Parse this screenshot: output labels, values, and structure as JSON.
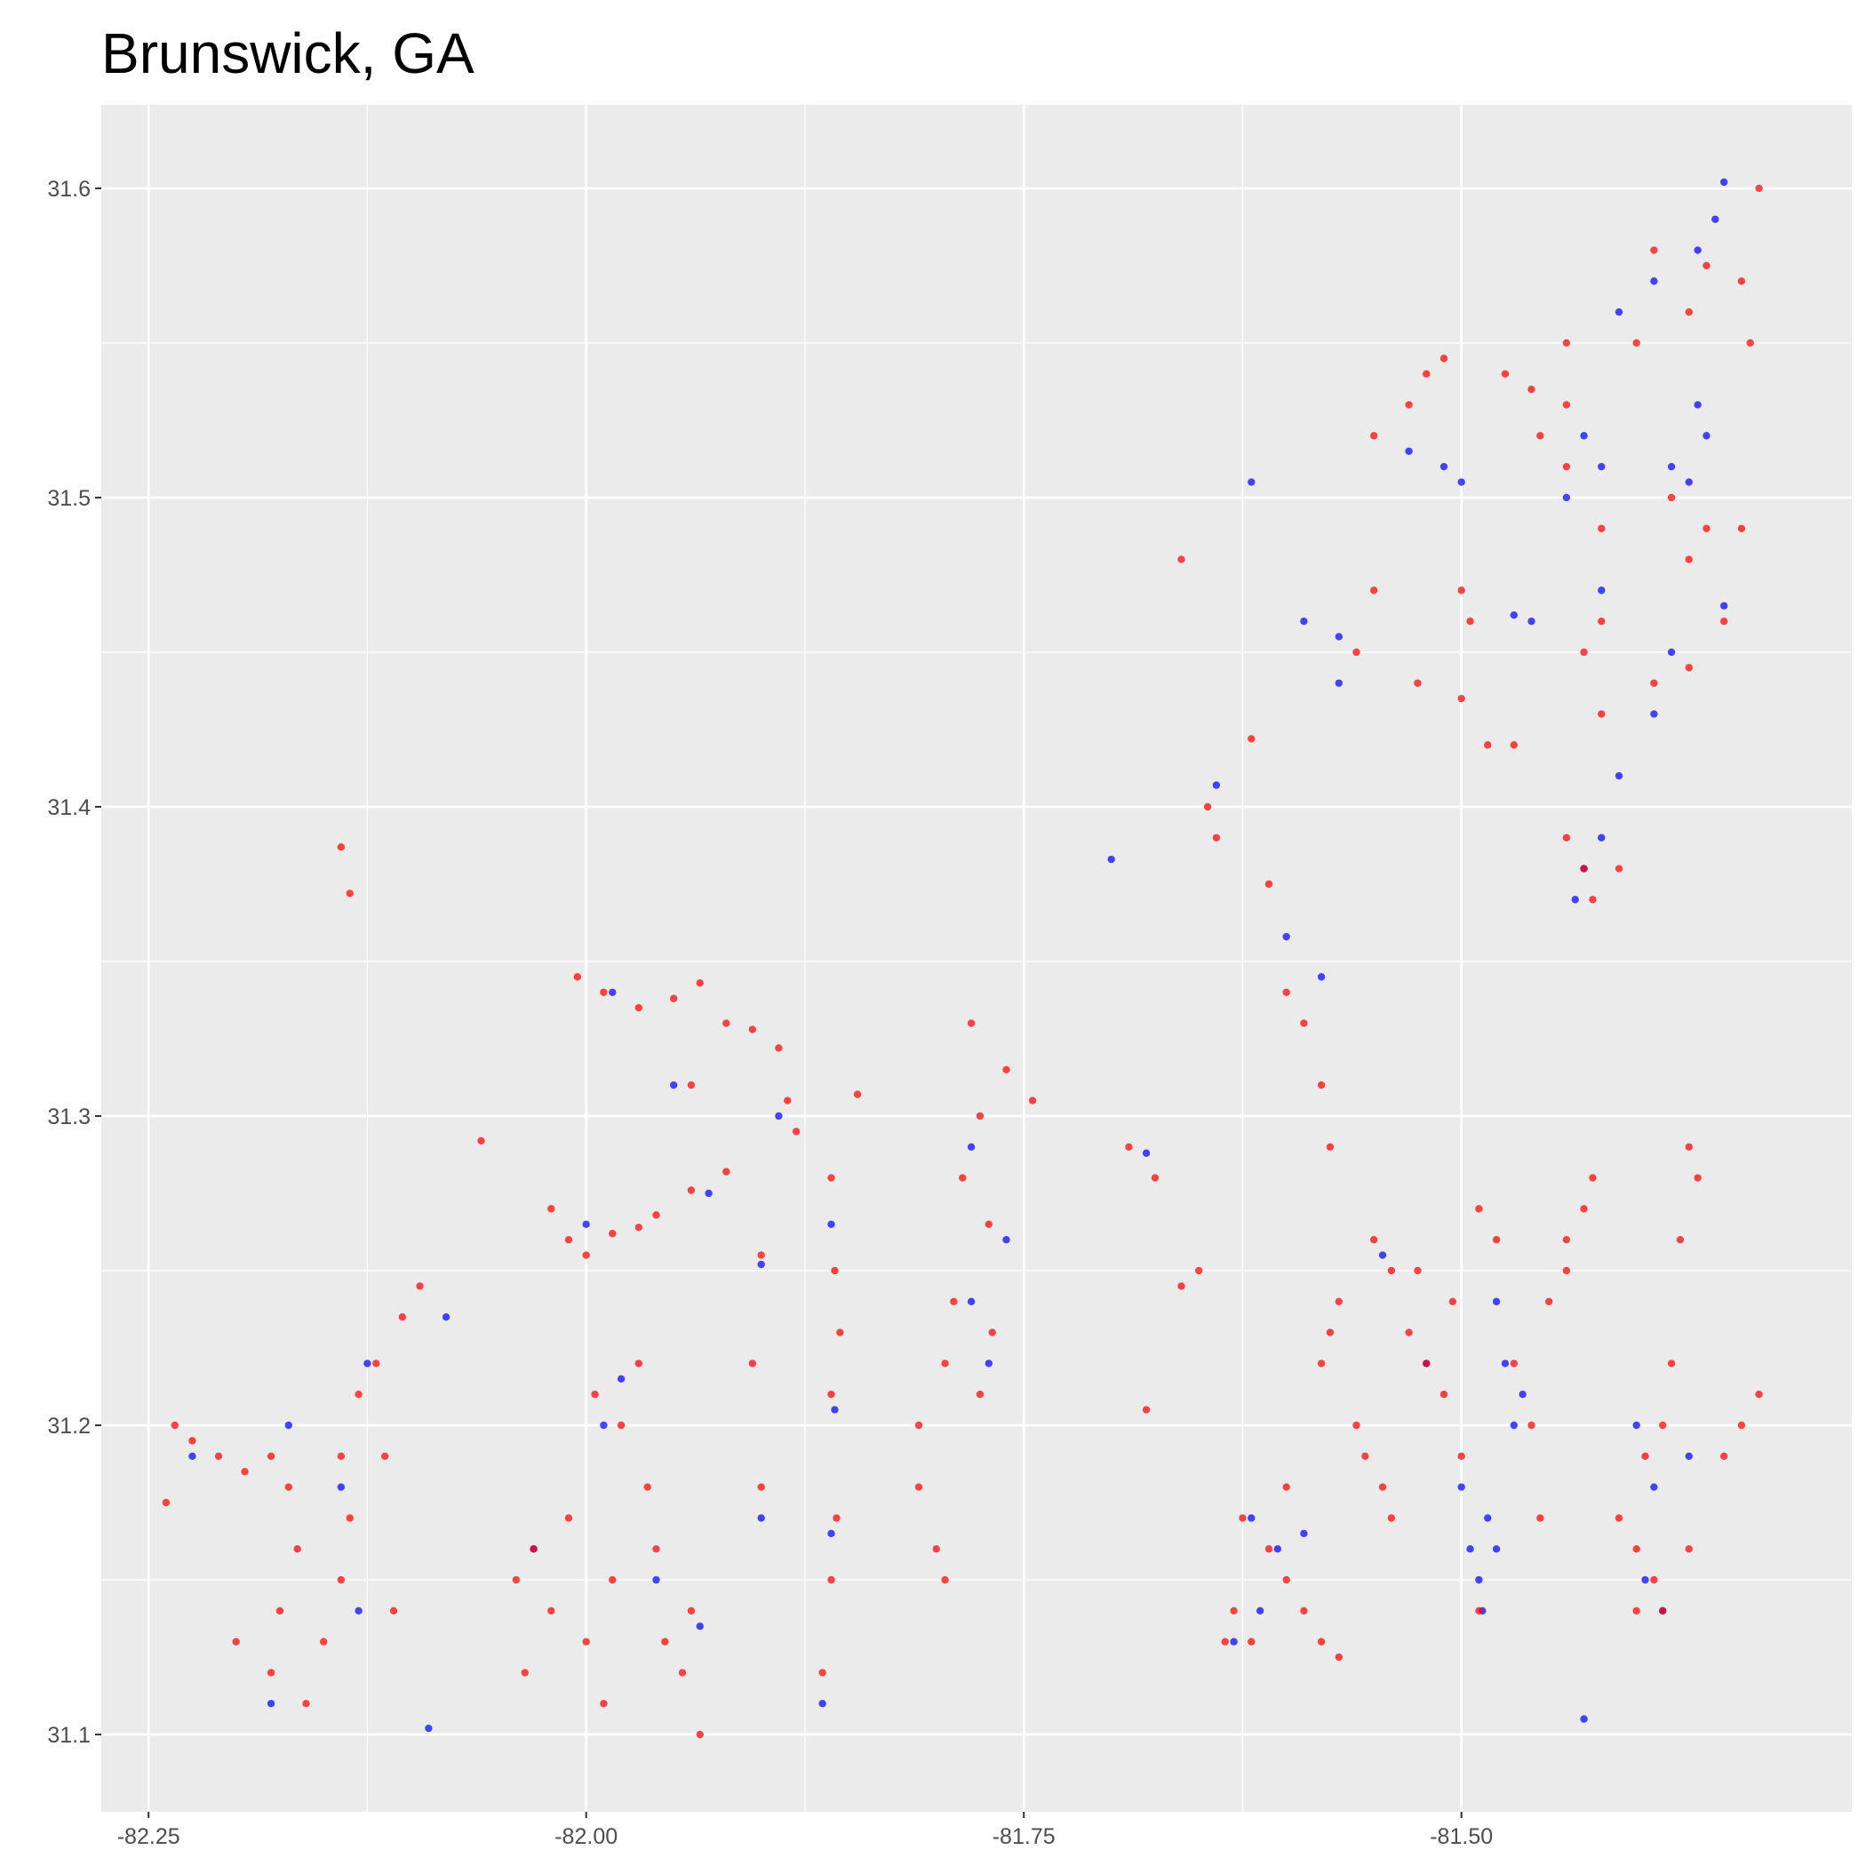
{
  "chart_data": {
    "type": "scatter",
    "title": "Brunswick, GA",
    "xlim": [
      -82.277,
      -81.277
    ],
    "ylim": [
      31.075,
      31.627
    ],
    "xticks": [
      -82.25,
      {
        "value": -82,
        "label": "-82.00"
      },
      -81.75,
      {
        "value": -81.5,
        "label": "-81.50"
      }
    ],
    "yticks": [
      31.1,
      31.2,
      31.3,
      31.4,
      31.5,
      31.6
    ],
    "grid": true,
    "series": [
      {
        "color": "#0000ff",
        "x": [
          -82.225,
          -82.17,
          -82.14,
          -82.125,
          -82.13,
          -82.18,
          -82.09,
          -82.08,
          -82.03,
          -82.0,
          -81.99,
          -81.98,
          -81.96,
          -81.935,
          -81.95,
          -81.93,
          -81.985,
          -81.9,
          -81.89,
          -81.86,
          -81.858,
          -81.86,
          -81.865,
          -81.9,
          -81.78,
          -81.77,
          -81.78,
          -81.76,
          -81.7,
          -81.68,
          -81.64,
          -81.6,
          -81.58,
          -81.62,
          -81.57,
          -81.57,
          -81.62,
          -81.605,
          -81.615,
          -81.63,
          -81.59,
          -81.545,
          -81.52,
          -81.5,
          -81.495,
          -81.49,
          -81.488,
          -81.485,
          -81.47,
          -81.475,
          -81.465,
          -81.48,
          -81.4,
          -81.39,
          -81.395,
          -81.385,
          -81.37,
          -81.43,
          -81.435,
          -81.42,
          -81.41,
          -81.39,
          -81.38,
          -81.46,
          -81.47,
          -81.42,
          -81.43,
          -81.42,
          -81.44,
          -81.38,
          -81.37,
          -81.36,
          -81.365,
          -81.35,
          -81.41,
          -81.39,
          -81.365,
          -81.355,
          -81.35,
          -81.51,
          -81.5,
          -81.53,
          -81.59,
          -81.48,
          -81.43
        ],
        "y": [
          31.19,
          31.2,
          31.18,
          31.22,
          31.14,
          31.11,
          31.102,
          31.235,
          31.16,
          31.265,
          31.2,
          31.215,
          31.15,
          31.135,
          31.31,
          31.275,
          31.34,
          31.252,
          31.3,
          31.265,
          31.205,
          31.165,
          31.11,
          31.17,
          31.29,
          31.22,
          31.24,
          31.26,
          31.383,
          31.288,
          31.407,
          31.358,
          31.345,
          31.505,
          31.44,
          31.455,
          31.17,
          31.16,
          31.14,
          31.13,
          31.165,
          31.255,
          31.22,
          31.18,
          31.16,
          31.15,
          31.14,
          31.17,
          31.2,
          31.22,
          31.21,
          31.24,
          31.2,
          31.18,
          31.15,
          31.14,
          31.19,
          31.38,
          31.37,
          31.39,
          31.41,
          31.43,
          31.45,
          31.46,
          31.462,
          31.47,
          31.52,
          31.51,
          31.5,
          31.51,
          31.505,
          31.52,
          31.53,
          31.465,
          31.56,
          31.57,
          31.58,
          31.59,
          31.602,
          31.51,
          31.505,
          31.515,
          31.46,
          31.16,
          31.105
        ]
      },
      {
        "color": "#ff0000",
        "x": [
          -82.235,
          -82.225,
          -82.21,
          -82.195,
          -82.18,
          -82.17,
          -82.165,
          -82.175,
          -82.18,
          -82.16,
          -82.15,
          -82.14,
          -82.135,
          -82.14,
          -82.13,
          -82.12,
          -82.115,
          -82.105,
          -82.095,
          -82.11,
          -82.2,
          -82.24,
          -82.14,
          -82.135,
          -82.06,
          -82.04,
          -82.035,
          -82.03,
          -82.02,
          -82.01,
          -82.0,
          -81.99,
          -81.985,
          -81.98,
          -81.995,
          -81.97,
          -81.965,
          -81.96,
          -81.955,
          -81.945,
          -81.94,
          -81.935,
          -82.01,
          -82.0,
          -81.985,
          -82.02,
          -81.97,
          -81.96,
          -81.94,
          -81.92,
          -81.99,
          -81.97,
          -81.95,
          -81.935,
          -81.92,
          -81.905,
          -81.89,
          -81.885,
          -81.88,
          -82.005,
          -81.94,
          -81.86,
          -81.858,
          -81.855,
          -81.86,
          -81.857,
          -81.86,
          -81.865,
          -81.9,
          -81.905,
          -81.9,
          -81.845,
          -81.78,
          -81.775,
          -81.785,
          -81.77,
          -81.768,
          -81.775,
          -81.79,
          -81.795,
          -81.81,
          -81.81,
          -81.8,
          -81.795,
          -81.745,
          -81.76,
          -81.69,
          -81.675,
          -81.68,
          -81.65,
          -81.66,
          -81.64,
          -81.645,
          -81.62,
          -81.61,
          -81.6,
          -81.59,
          -81.58,
          -81.575,
          -81.63,
          -81.62,
          -81.61,
          -81.6,
          -81.59,
          -81.58,
          -81.57,
          -81.6,
          -81.625,
          -81.635,
          -81.58,
          -81.575,
          -81.57,
          -81.56,
          -81.555,
          -81.545,
          -81.54,
          -81.55,
          -81.54,
          -81.53,
          -81.52,
          -81.51,
          -81.525,
          -81.505,
          -81.49,
          -81.48,
          -81.47,
          -81.46,
          -81.455,
          -81.5,
          -81.49,
          -81.45,
          -81.44,
          -81.43,
          -81.425,
          -81.44,
          -81.41,
          -81.4,
          -81.39,
          -81.395,
          -81.385,
          -81.38,
          -81.4,
          -81.385,
          -81.37,
          -81.34,
          -81.33,
          -81.35,
          -81.37,
          -81.365,
          -81.375,
          -81.52,
          -81.51,
          -81.53,
          -81.475,
          -81.46,
          -81.44,
          -81.4,
          -81.39,
          -81.37,
          -81.36,
          -81.34,
          -81.335,
          -81.33,
          -81.38,
          -81.37,
          -81.36,
          -81.34,
          -81.35,
          -81.42,
          -81.43,
          -81.5,
          -81.495,
          -81.485,
          -81.47,
          -81.39,
          -81.37,
          -81.42,
          -81.43,
          -81.425,
          -81.44,
          -81.41,
          -81.55,
          -81.56,
          -81.525,
          -81.5,
          -81.44,
          -81.455,
          -81.44,
          -81.42,
          -81.55,
          -81.66
        ],
        "y": [
          31.2,
          31.195,
          31.19,
          31.185,
          31.19,
          31.18,
          31.16,
          31.14,
          31.12,
          31.11,
          31.13,
          31.15,
          31.17,
          31.19,
          31.21,
          31.22,
          31.19,
          31.235,
          31.245,
          31.14,
          31.13,
          31.175,
          31.387,
          31.372,
          31.292,
          31.15,
          31.12,
          31.16,
          31.14,
          31.17,
          31.13,
          31.11,
          31.15,
          31.2,
          31.21,
          31.22,
          31.18,
          31.16,
          31.13,
          31.12,
          31.14,
          31.1,
          31.26,
          31.255,
          31.262,
          31.27,
          31.264,
          31.268,
          31.276,
          31.282,
          31.34,
          31.335,
          31.338,
          31.343,
          31.33,
          31.328,
          31.322,
          31.305,
          31.295,
          31.345,
          31.31,
          31.28,
          31.25,
          31.23,
          31.21,
          31.17,
          31.15,
          31.12,
          31.255,
          31.22,
          31.18,
          31.307,
          31.33,
          31.3,
          31.28,
          31.265,
          31.23,
          31.21,
          31.24,
          31.22,
          31.2,
          31.18,
          31.16,
          31.15,
          31.305,
          31.315,
          31.29,
          31.28,
          31.205,
          31.25,
          31.245,
          31.39,
          31.4,
          31.422,
          31.375,
          31.34,
          31.33,
          31.31,
          31.29,
          31.14,
          31.13,
          31.16,
          31.15,
          31.14,
          31.13,
          31.125,
          31.18,
          31.17,
          31.13,
          31.22,
          31.23,
          31.24,
          31.2,
          31.19,
          31.18,
          31.17,
          31.26,
          31.25,
          31.23,
          31.22,
          31.21,
          31.25,
          31.24,
          31.27,
          31.26,
          31.22,
          31.2,
          31.17,
          31.19,
          31.14,
          31.24,
          31.25,
          31.27,
          31.28,
          31.26,
          31.17,
          31.16,
          31.15,
          31.19,
          31.2,
          31.22,
          31.14,
          31.14,
          31.16,
          31.2,
          31.21,
          31.19,
          31.29,
          31.28,
          31.26,
          31.54,
          31.545,
          31.53,
          31.54,
          31.535,
          31.55,
          31.55,
          31.58,
          31.56,
          31.575,
          31.57,
          31.55,
          31.6,
          31.5,
          31.48,
          31.49,
          31.49,
          31.46,
          31.46,
          31.45,
          31.47,
          31.46,
          31.42,
          31.42,
          31.44,
          31.445,
          31.43,
          31.38,
          31.37,
          31.39,
          31.38,
          31.47,
          31.45,
          31.44,
          31.435,
          31.51,
          31.52,
          31.53,
          31.49,
          31.52,
          31.48
        ]
      }
    ]
  }
}
